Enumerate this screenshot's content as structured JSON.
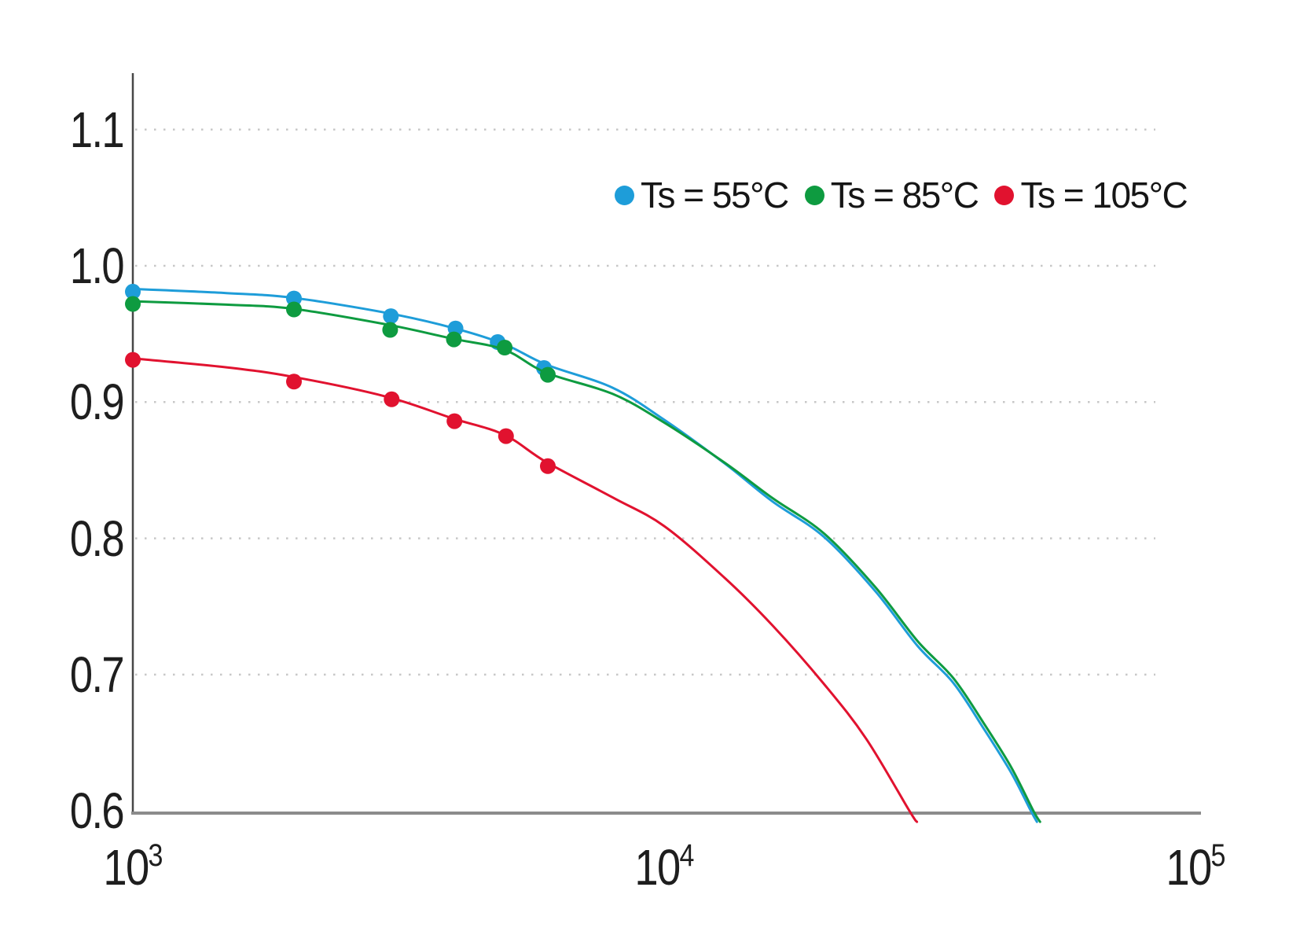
{
  "chart_data": {
    "type": "scatter",
    "title": "",
    "xlabel": "",
    "ylabel": "",
    "xscale": "log",
    "xlim": [
      1000,
      100000
    ],
    "ylim": [
      0.6,
      1.14
    ],
    "grid": "horizontal-dotted",
    "gridline_values": [
      1.1,
      1.0,
      0.9,
      0.8,
      0.7
    ],
    "legend_position": "top-right",
    "x_ticks": [
      {
        "base": "10",
        "exp": "3",
        "value": 1000
      },
      {
        "base": "10",
        "exp": "4",
        "value": 10000
      },
      {
        "base": "10",
        "exp": "5",
        "value": 100000
      }
    ],
    "y_ticks": [
      {
        "label": "1.1",
        "value": 1.1
      },
      {
        "label": "1.0",
        "value": 1.0
      },
      {
        "label": "0.9",
        "value": 0.9
      },
      {
        "label": "0.8",
        "value": 0.8
      },
      {
        "label": "0.7",
        "value": 0.7
      },
      {
        "label": "0.6",
        "value": 0.6
      }
    ],
    "series": [
      {
        "key": "ts-55c",
        "name": "Ts = 55°C",
        "color": "#1E9DD9",
        "marker": "circle",
        "points": [
          [
            1000,
            0.981
          ],
          [
            2010,
            0.976
          ],
          [
            3060,
            0.963
          ],
          [
            4050,
            0.954
          ],
          [
            4860,
            0.944
          ],
          [
            5940,
            0.925
          ]
        ],
        "fit_curve": [
          [
            1000,
            0.983
          ],
          [
            1500,
            0.98
          ],
          [
            2000,
            0.9765
          ],
          [
            3000,
            0.9655
          ],
          [
            4000,
            0.9545
          ],
          [
            5000,
            0.9425
          ],
          [
            6000,
            0.9275
          ],
          [
            8000,
            0.9105
          ],
          [
            10000,
            0.887
          ],
          [
            13000,
            0.855
          ],
          [
            16000,
            0.827
          ],
          [
            20000,
            0.801
          ],
          [
            25000,
            0.761
          ],
          [
            30000,
            0.721
          ],
          [
            35000,
            0.694
          ],
          [
            40000,
            0.66
          ],
          [
            45000,
            0.628
          ],
          [
            49000,
            0.6
          ],
          [
            50300,
            0.592
          ]
        ]
      },
      {
        "key": "ts-85c",
        "name": "Ts = 85°C",
        "color": "#0E9B40",
        "marker": "circle",
        "points": [
          [
            1000,
            0.972
          ],
          [
            2010,
            0.968
          ],
          [
            3050,
            0.953
          ],
          [
            4020,
            0.946
          ],
          [
            5010,
            0.94
          ],
          [
            6040,
            0.92
          ]
        ],
        "fit_curve": [
          [
            1000,
            0.974
          ],
          [
            1500,
            0.9715
          ],
          [
            2000,
            0.9685
          ],
          [
            3000,
            0.957
          ],
          [
            4000,
            0.9465
          ],
          [
            5000,
            0.9385
          ],
          [
            6000,
            0.9215
          ],
          [
            8000,
            0.906
          ],
          [
            10000,
            0.885
          ],
          [
            13000,
            0.8555
          ],
          [
            16000,
            0.8295
          ],
          [
            20000,
            0.8035
          ],
          [
            25000,
            0.764
          ],
          [
            30000,
            0.7245
          ],
          [
            35000,
            0.6975
          ],
          [
            40000,
            0.664
          ],
          [
            45000,
            0.632
          ],
          [
            49550,
            0.6
          ],
          [
            51000,
            0.592
          ]
        ]
      },
      {
        "key": "ts-105c",
        "name": "Ts = 105°C",
        "color": "#E1122F",
        "marker": "circle",
        "points": [
          [
            1000,
            0.931
          ],
          [
            2010,
            0.915
          ],
          [
            3070,
            0.902
          ],
          [
            4030,
            0.886
          ],
          [
            5040,
            0.875
          ],
          [
            6040,
            0.853
          ]
        ],
        "fit_curve": [
          [
            1000,
            0.932
          ],
          [
            1500,
            0.9255
          ],
          [
            2000,
            0.9185
          ],
          [
            3000,
            0.904
          ],
          [
            4000,
            0.888
          ],
          [
            5000,
            0.876
          ],
          [
            6000,
            0.856
          ],
          [
            8000,
            0.83
          ],
          [
            10000,
            0.809
          ],
          [
            13000,
            0.771
          ],
          [
            16000,
            0.736
          ],
          [
            20000,
            0.693
          ],
          [
            24000,
            0.653
          ],
          [
            28950,
            0.6
          ],
          [
            29900,
            0.592
          ]
        ]
      }
    ]
  }
}
